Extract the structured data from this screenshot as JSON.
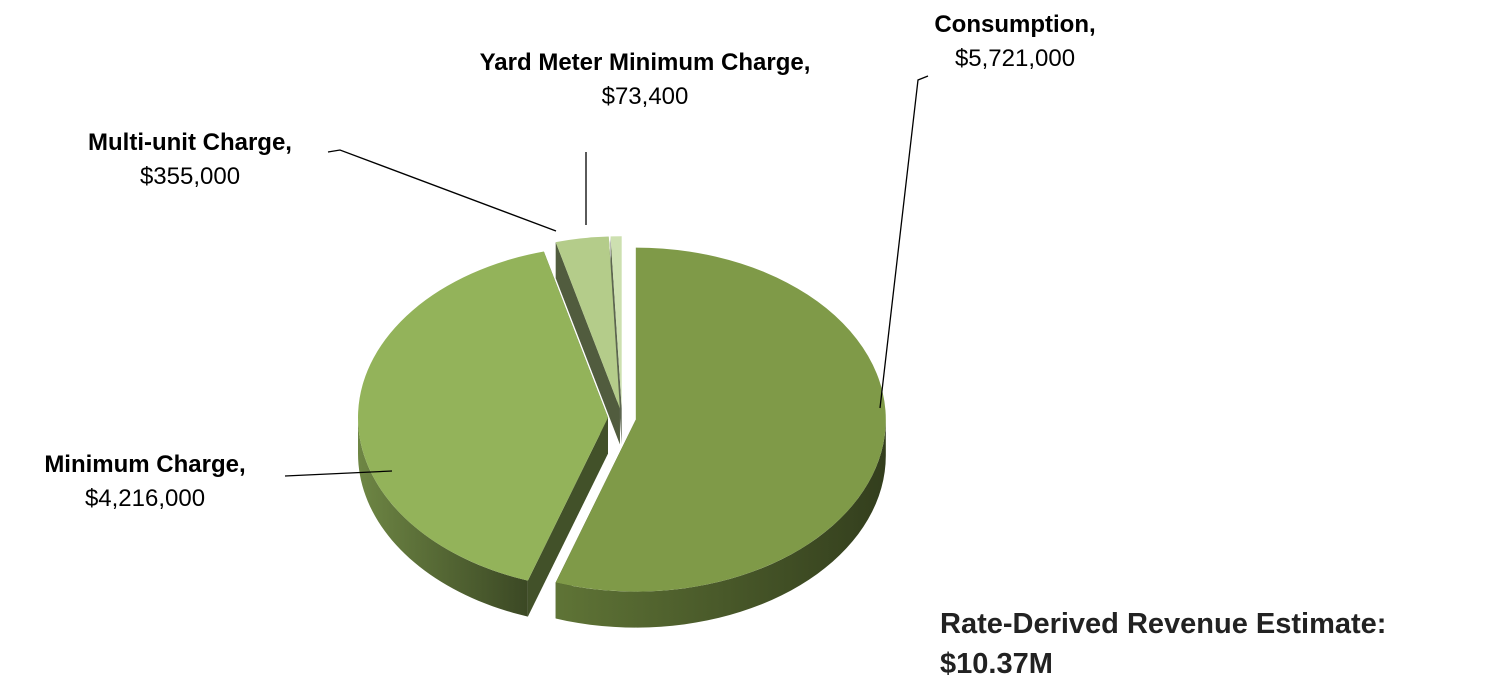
{
  "chart_data": {
    "type": "pie",
    "categories": [
      "Consumption,",
      "Minimum Charge,",
      "Multi-unit Charge,",
      "Yard Meter Minimum Charge,"
    ],
    "values": [
      5721000,
      4216000,
      355000,
      73400
    ],
    "value_labels": [
      "$5,721,000",
      "$4,216,000",
      "$355,000",
      "$73,400"
    ],
    "colors": [
      "#7f9a48",
      "#93b35a",
      "#b4cc8a",
      "#cde0b0"
    ],
    "exploded": true,
    "annotation": [
      "Rate-Derived Revenue Estimate:",
      "$10.37M"
    ]
  }
}
